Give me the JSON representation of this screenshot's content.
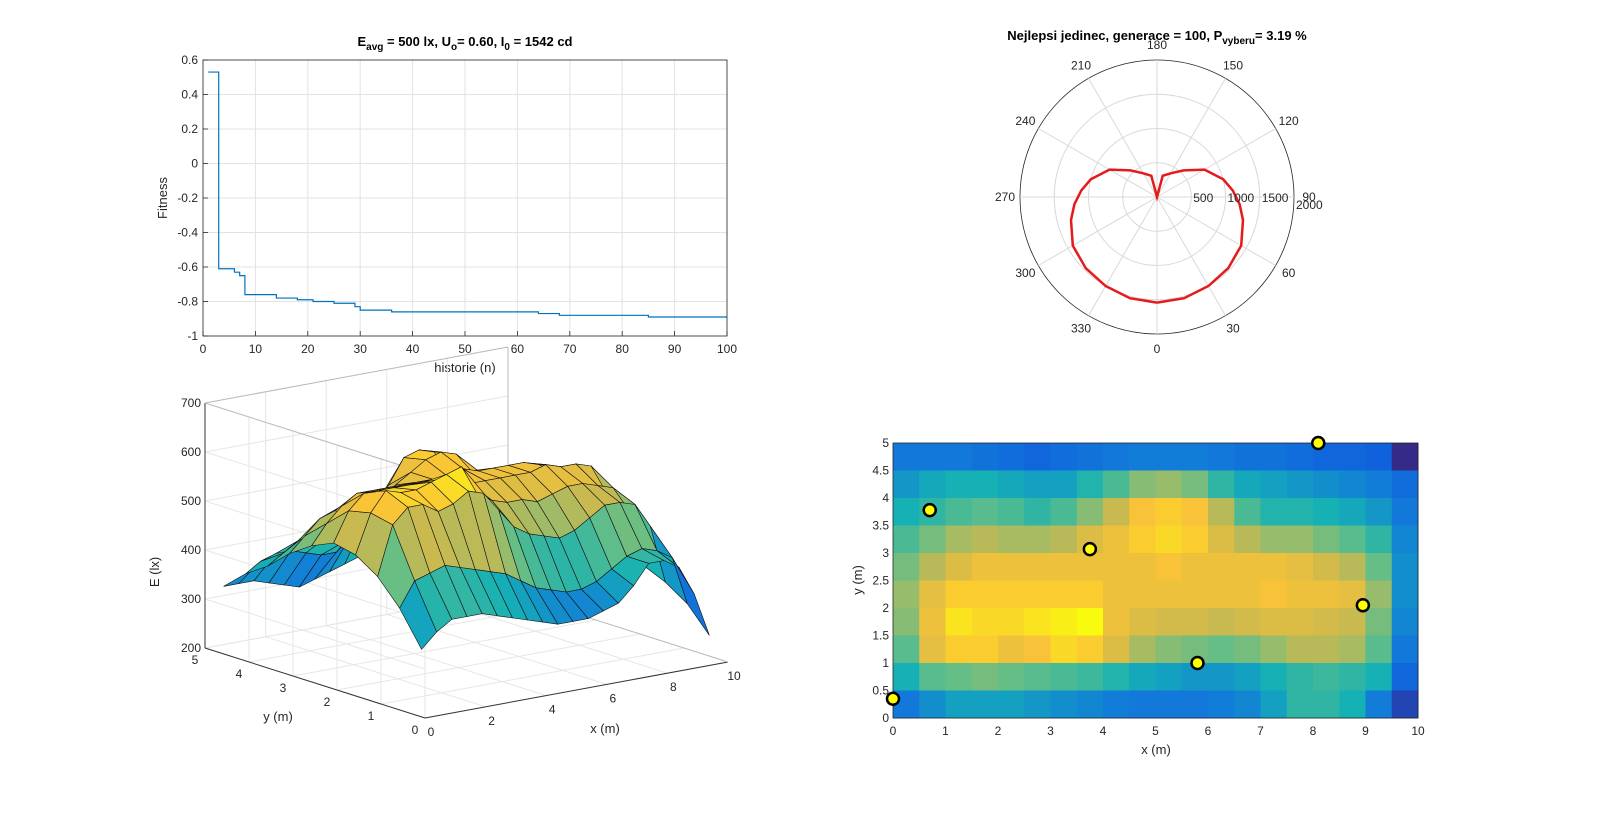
{
  "chart_data": [
    {
      "type": "line",
      "title": "E_avg = 500 lx, U_o = 0.60, I_0 = 1542 cd",
      "title_parts": {
        "e": "E",
        "e_sub": "avg",
        "e_rest": " = 500 lx, U",
        "u_sub": "o",
        "u_rest": "= 0.60, I",
        "i_sub": "0",
        "i_rest": " = 1542 cd"
      },
      "xlabel": "historie (n)",
      "ylabel": "Fitness",
      "xlim": [
        0,
        100
      ],
      "ylim": [
        -1,
        0.6
      ],
      "xticks": [
        "0",
        "10",
        "20",
        "30",
        "40",
        "50",
        "60",
        "70",
        "80",
        "90",
        "100"
      ],
      "yticks": [
        "-1",
        "-0.8",
        "-0.6",
        "-0.4",
        "-0.2",
        "0",
        "0.2",
        "0.4",
        "0.6"
      ],
      "grid": true,
      "color": "#0072bd",
      "x": [
        1,
        2,
        3,
        5,
        6,
        7,
        8,
        13,
        14,
        17,
        18,
        20,
        21,
        24,
        25,
        28,
        29,
        30,
        35,
        36,
        40,
        41,
        49,
        50,
        56,
        57,
        63,
        64,
        67,
        68,
        84,
        85,
        100
      ],
      "y": [
        0.53,
        0.53,
        -0.61,
        -0.61,
        -0.63,
        -0.65,
        -0.76,
        -0.76,
        -0.78,
        -0.78,
        -0.79,
        -0.79,
        -0.8,
        -0.8,
        -0.81,
        -0.81,
        -0.83,
        -0.85,
        -0.85,
        -0.86,
        -0.86,
        -0.86,
        -0.86,
        -0.86,
        -0.86,
        -0.86,
        -0.86,
        -0.87,
        -0.87,
        -0.88,
        -0.88,
        -0.89,
        -0.89
      ]
    },
    {
      "type": "polar",
      "title": "Nejlepsi jedinec, generace = 100, P_vyberu = 3.19 %",
      "title_parts": {
        "main": "Nejlepsi jedinec, generace = 100, P",
        "sub": "vyberu",
        "rest": "= 3.19 %"
      },
      "rlim": [
        0,
        2000
      ],
      "r_ticks": [
        "500",
        "1000",
        "1500",
        "2000"
      ],
      "angle_labels": [
        "0",
        "30",
        "60",
        "90",
        "120",
        "150",
        "180",
        "210",
        "240",
        "270",
        "300",
        "330"
      ],
      "color": "#e41a1c",
      "theta_deg": [
        0,
        15,
        30,
        45,
        60,
        75,
        85,
        95,
        105,
        120,
        135,
        150,
        165,
        180
      ],
      "r": [
        1542,
        1530,
        1500,
        1470,
        1420,
        1300,
        1210,
        1110,
        1000,
        800,
        550,
        400,
        320,
        0
      ]
    },
    {
      "type": "surface",
      "xlabel": "x (m)",
      "ylabel": "y (m)",
      "zlabel": "E (lx)",
      "xlim": [
        0,
        10
      ],
      "ylim": [
        0,
        5
      ],
      "zlim": [
        200,
        700
      ],
      "xticks": [
        "0",
        "2",
        "4",
        "6",
        "8",
        "10"
      ],
      "yticks": [
        "0",
        "1",
        "2",
        "3",
        "4",
        "5"
      ],
      "zticks": [
        "200",
        "300",
        "400",
        "500",
        "600",
        "700"
      ]
    },
    {
      "type": "heatmap",
      "xlabel": "x (m)",
      "ylabel": "y (m)",
      "xlim": [
        0,
        10
      ],
      "ylim": [
        0,
        5
      ],
      "xticks": [
        "0",
        "1",
        "2",
        "3",
        "4",
        "5",
        "6",
        "7",
        "8",
        "9",
        "10"
      ],
      "yticks": [
        "0",
        "0.5",
        "1",
        "1.5",
        "2",
        "2.5",
        "3",
        "3.5",
        "4",
        "4.5",
        "5"
      ],
      "rows": 10,
      "cols": 20,
      "grid_values": [
        [
          330,
          330,
          330,
          320,
          310,
          300,
          310,
          320,
          330,
          340,
          340,
          340,
          330,
          320,
          320,
          310,
          300,
          300,
          290,
          220
        ],
        [
          370,
          390,
          400,
          400,
          390,
          380,
          380,
          410,
          440,
          480,
          490,
          470,
          420,
          390,
          380,
          370,
          360,
          350,
          340,
          310
        ],
        [
          400,
          420,
          440,
          450,
          440,
          420,
          440,
          480,
          520,
          570,
          580,
          570,
          510,
          440,
          410,
          410,
          400,
          390,
          370,
          330
        ],
        [
          440,
          470,
          500,
          510,
          500,
          500,
          510,
          540,
          560,
          580,
          590,
          580,
          540,
          510,
          490,
          490,
          470,
          450,
          420,
          350
        ],
        [
          470,
          510,
          540,
          560,
          560,
          560,
          560,
          560,
          560,
          560,
          570,
          560,
          560,
          560,
          560,
          550,
          530,
          510,
          460,
          360
        ],
        [
          490,
          550,
          580,
          580,
          580,
          580,
          580,
          580,
          560,
          560,
          560,
          560,
          560,
          560,
          570,
          560,
          560,
          550,
          490,
          360
        ],
        [
          480,
          560,
          600,
          590,
          590,
          600,
          610,
          620,
          560,
          540,
          530,
          530,
          520,
          530,
          540,
          540,
          530,
          520,
          470,
          350
        ],
        [
          450,
          550,
          580,
          580,
          560,
          570,
          590,
          580,
          540,
          500,
          480,
          470,
          460,
          470,
          490,
          510,
          510,
          500,
          450,
          330
        ],
        [
          400,
          450,
          460,
          470,
          460,
          450,
          440,
          430,
          410,
          390,
          380,
          370,
          370,
          380,
          400,
          420,
          430,
          420,
          400,
          300
        ],
        [
          330,
          360,
          380,
          380,
          380,
          370,
          360,
          350,
          340,
          330,
          330,
          330,
          340,
          350,
          380,
          420,
          420,
          400,
          340,
          250
        ]
      ],
      "points": [
        {
          "x": 0.0,
          "y": 0.35
        },
        {
          "x": 0.7,
          "y": 3.78
        },
        {
          "x": 3.75,
          "y": 3.07
        },
        {
          "x": 5.8,
          "y": 1.0
        },
        {
          "x": 8.1,
          "y": 5.0
        },
        {
          "x": 8.95,
          "y": 2.05
        }
      ]
    }
  ]
}
